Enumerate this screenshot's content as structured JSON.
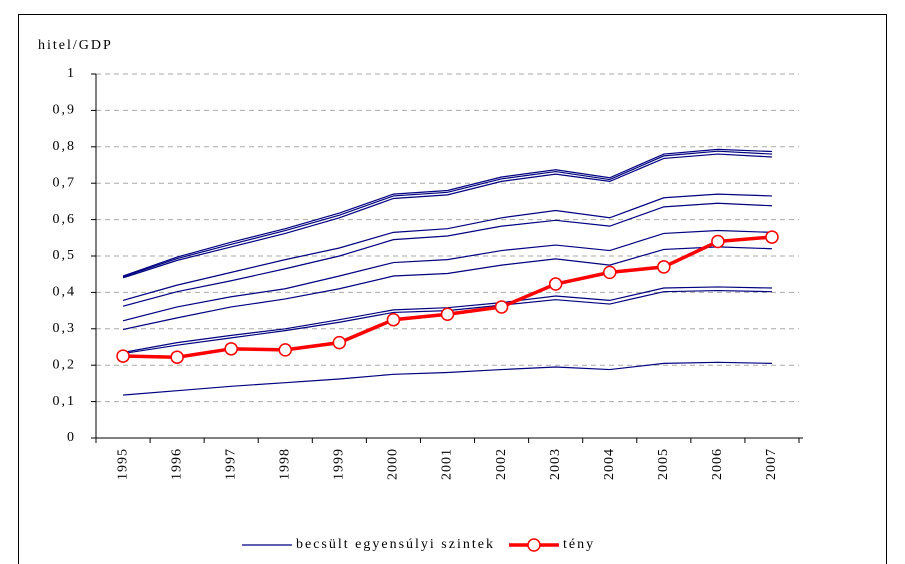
{
  "chart_data": {
    "type": "line",
    "y_label": "hitel/GDP",
    "categories": [
      "1995",
      "1996",
      "1997",
      "1998",
      "1999",
      "2000",
      "2001",
      "2002",
      "2003",
      "2004",
      "2005",
      "2006",
      "2007"
    ],
    "ylim": [
      0,
      1
    ],
    "yticks": [
      0,
      {
        "value": 0.1,
        "label": "0,1"
      },
      {
        "value": 0.2,
        "label": "0,2"
      },
      {
        "value": 0.3,
        "label": "0,3"
      },
      {
        "value": 0.4,
        "label": "0,4"
      },
      {
        "value": 0.5,
        "label": "0,5"
      },
      {
        "value": 0.6,
        "label": "0,6"
      },
      {
        "value": 0.7,
        "label": "0,7"
      },
      {
        "value": 0.8,
        "label": "0,8"
      },
      {
        "value": 0.9,
        "label": "0,9"
      },
      1
    ],
    "grid": true,
    "legend": "bottom",
    "series": [
      {
        "name": "becsült egyensúlyi szintek",
        "color": "#000080",
        "values": [
          0.118,
          0.13,
          0.142,
          0.152,
          0.162,
          0.175,
          0.18,
          0.188,
          0.195,
          0.188,
          0.205,
          0.208,
          0.205
        ]
      },
      {
        "color": "#000080",
        "values": [
          0.232,
          0.255,
          0.275,
          0.295,
          0.318,
          0.345,
          0.35,
          0.365,
          0.38,
          0.368,
          0.402,
          0.405,
          0.402
        ]
      },
      {
        "color": "#000080",
        "values": [
          0.235,
          0.262,
          0.282,
          0.3,
          0.325,
          0.352,
          0.358,
          0.372,
          0.39,
          0.378,
          0.412,
          0.415,
          0.412
        ]
      },
      {
        "color": "#000080",
        "values": [
          0.298,
          0.33,
          0.36,
          0.382,
          0.41,
          0.445,
          0.452,
          0.475,
          0.492,
          0.475,
          0.518,
          0.525,
          0.52
        ]
      },
      {
        "color": "#000080",
        "values": [
          0.322,
          0.36,
          0.388,
          0.41,
          0.445,
          0.482,
          0.49,
          0.515,
          0.53,
          0.515,
          0.562,
          0.57,
          0.565
        ]
      },
      {
        "color": "#000080",
        "values": [
          0.362,
          0.402,
          0.432,
          0.465,
          0.5,
          0.545,
          0.555,
          0.582,
          0.598,
          0.582,
          0.635,
          0.645,
          0.638
        ]
      },
      {
        "color": "#000080",
        "values": [
          0.378,
          0.42,
          0.455,
          0.49,
          0.522,
          0.565,
          0.575,
          0.605,
          0.625,
          0.605,
          0.66,
          0.67,
          0.665
        ]
      },
      {
        "color": "#000080",
        "values": [
          0.44,
          0.488,
          0.525,
          0.562,
          0.605,
          0.658,
          0.668,
          0.705,
          0.725,
          0.705,
          0.768,
          0.78,
          0.772
        ]
      },
      {
        "color": "#000080",
        "values": [
          0.443,
          0.493,
          0.532,
          0.57,
          0.612,
          0.665,
          0.675,
          0.712,
          0.732,
          0.71,
          0.775,
          0.788,
          0.78
        ]
      },
      {
        "color": "#000080",
        "values": [
          0.445,
          0.497,
          0.538,
          0.575,
          0.618,
          0.67,
          0.68,
          0.717,
          0.737,
          0.715,
          0.78,
          0.793,
          0.787
        ]
      },
      {
        "name": "tény",
        "color": "#ff0000",
        "marker": "circle",
        "values": [
          0.225,
          0.222,
          0.245,
          0.242,
          0.262,
          0.325,
          0.34,
          0.36,
          0.423,
          0.455,
          0.47,
          0.54,
          0.552
        ]
      }
    ]
  }
}
